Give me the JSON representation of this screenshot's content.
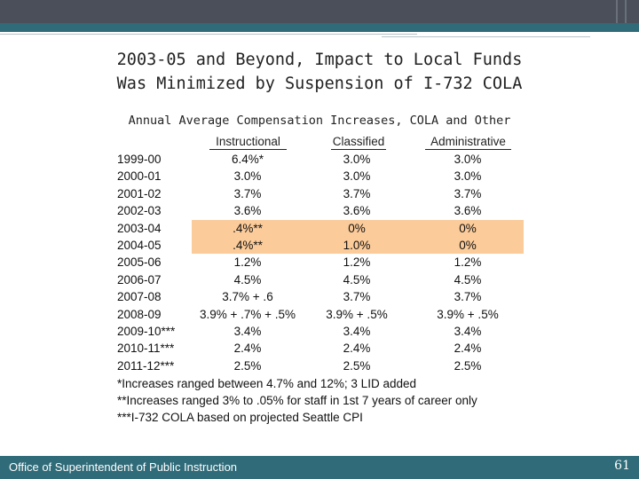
{
  "slide": {
    "title_line1": "2003-05 and Beyond, Impact to Local Funds",
    "title_line2": "Was Minimized by Suspension of I-732 COLA",
    "subtitle": "Annual Average Compensation Increases, COLA and Other"
  },
  "table": {
    "headers": [
      "Instructional",
      "Classified",
      "Administrative"
    ],
    "rows": [
      {
        "year": "1999-00",
        "instructional": "6.4%*",
        "classified": "3.0%",
        "administrative": "3.0%"
      },
      {
        "year": "2000-01",
        "instructional": "3.0%",
        "classified": "3.0%",
        "administrative": "3.0%"
      },
      {
        "year": "2001-02",
        "instructional": "3.7%",
        "classified": "3.7%",
        "administrative": "3.7%"
      },
      {
        "year": "2002-03",
        "instructional": "3.6%",
        "classified": "3.6%",
        "administrative": "3.6%"
      },
      {
        "year": "2003-04",
        "instructional": ".4%**",
        "classified": "0%",
        "administrative": "0%"
      },
      {
        "year": "2004-05",
        "instructional": ".4%**",
        "classified": "1.0%",
        "administrative": "0%"
      },
      {
        "year": "2005-06",
        "instructional": "1.2%",
        "classified": "1.2%",
        "administrative": "1.2%"
      },
      {
        "year": "2006-07",
        "instructional": "4.5%",
        "classified": "4.5%",
        "administrative": "4.5%"
      },
      {
        "year": "2007-08",
        "instructional": "3.7% + .6",
        "classified": "3.7%",
        "administrative": "3.7%"
      },
      {
        "year": "2008-09",
        "instructional": "3.9% + .7% + .5%",
        "classified": "3.9% + .5%",
        "administrative": "3.9% + .5%"
      },
      {
        "year": "2009-10***",
        "instructional": "3.4%",
        "classified": "3.4%",
        "administrative": "3.4%"
      },
      {
        "year": "2010-11***",
        "instructional": "2.4%",
        "classified": "2.4%",
        "administrative": "2.4%"
      },
      {
        "year": "2011-12***",
        "instructional": "2.5%",
        "classified": "2.5%",
        "administrative": "2.5%"
      }
    ],
    "highlight_color": "#fbcb9a"
  },
  "notes": [
    "*Increases ranged between 4.7% and 12%; 3 LID added",
    "**Increases ranged 3% to .05% for staff in 1st 7 years of career only",
    "***I-732 COLA based on projected Seattle CPI"
  ],
  "footer": {
    "text": "Office of Superintendent of Public Instruction",
    "page_number": "61"
  },
  "colors": {
    "accent": "#2f6b78",
    "topbar": "#4a4f59"
  }
}
